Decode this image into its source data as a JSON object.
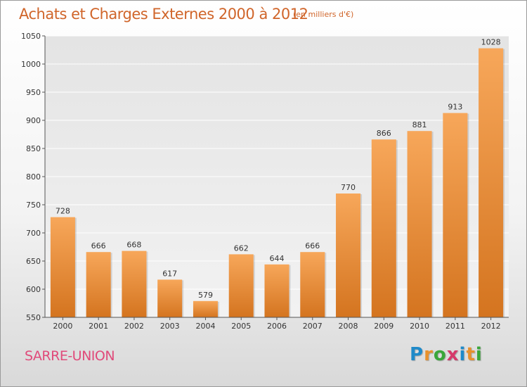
{
  "title": "Achats et Charges Externes 2000 à 2012",
  "subtitle": "(en milliers d'€)",
  "city": "SARRE-UNION",
  "logo": {
    "text": "Proxiti",
    "letters": [
      "P",
      "r",
      "o",
      "x",
      "i",
      "t",
      "i"
    ],
    "colors": [
      "#1f8ac9",
      "#e8912c",
      "#3aa63a",
      "#d63a6a",
      "#1f8ac9",
      "#e8912c",
      "#3aa63a"
    ]
  },
  "colors": {
    "title": "#d0652a",
    "bar_top": "#f7a75a",
    "bar_bottom": "#d4741f",
    "city": "#e04a7a"
  },
  "chart_data": {
    "type": "bar",
    "categories": [
      "2000",
      "2001",
      "2002",
      "2003",
      "2004",
      "2005",
      "2006",
      "2007",
      "2008",
      "2009",
      "2010",
      "2011",
      "2012"
    ],
    "values": [
      728,
      666,
      668,
      617,
      579,
      662,
      644,
      666,
      770,
      866,
      881,
      913,
      1028
    ],
    "ylim": [
      550,
      1050
    ],
    "yticks": [
      550,
      600,
      650,
      700,
      750,
      800,
      850,
      900,
      950,
      1000,
      1050
    ],
    "grid": true
  }
}
